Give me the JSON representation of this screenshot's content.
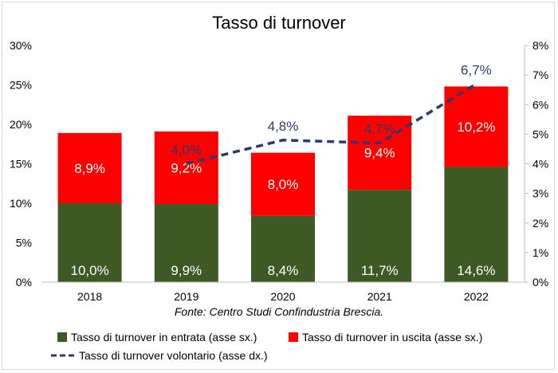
{
  "chart_data": {
    "type": "bar",
    "title": "Tasso di turnover",
    "source": "Fonte: Centro Studi Confindustria Brescia.",
    "categories": [
      "2018",
      "2019",
      "2020",
      "2021",
      "2022"
    ],
    "y_left": {
      "ylim": [
        0,
        30
      ],
      "ticks": [
        0,
        5,
        10,
        15,
        20,
        25,
        30
      ],
      "tick_labels": [
        "0%",
        "5%",
        "10%",
        "15%",
        "20%",
        "25%",
        "30%"
      ]
    },
    "y_right": {
      "ylim": [
        0,
        8
      ],
      "ticks": [
        0,
        1,
        2,
        3,
        4,
        5,
        6,
        7,
        8
      ],
      "tick_labels": [
        "0%",
        "1%",
        "2%",
        "3%",
        "4%",
        "5%",
        "6%",
        "7%",
        "8%"
      ]
    },
    "grid": false,
    "legend_position": "bottom",
    "series": [
      {
        "name": "Tasso di turnover in entrata (asse sx.)",
        "kind": "bar",
        "axis": "left",
        "color": "#3d5a24",
        "values": [
          10.0,
          9.9,
          8.4,
          11.7,
          14.6
        ],
        "labels": [
          "10,0%",
          "9,9%",
          "8,4%",
          "11,7%",
          "14,6%"
        ]
      },
      {
        "name": "Tasso di turnover in uscita (asse sx.)",
        "kind": "bar",
        "axis": "left",
        "color": "#ff0000",
        "values": [
          8.9,
          9.2,
          8.0,
          9.4,
          10.2
        ],
        "labels": [
          "8,9%",
          "9,2%",
          "8,0%",
          "9,4%",
          "10,2%"
        ]
      },
      {
        "name": "Tasso di turnover volontario (asse dx.)",
        "kind": "line",
        "axis": "right",
        "color": "#2e3a6e",
        "dashed": true,
        "values": [
          null,
          4.0,
          4.8,
          4.7,
          6.7
        ],
        "labels": [
          null,
          "4,0%",
          "4,8%",
          "4,7%",
          "6,7%"
        ]
      }
    ]
  }
}
